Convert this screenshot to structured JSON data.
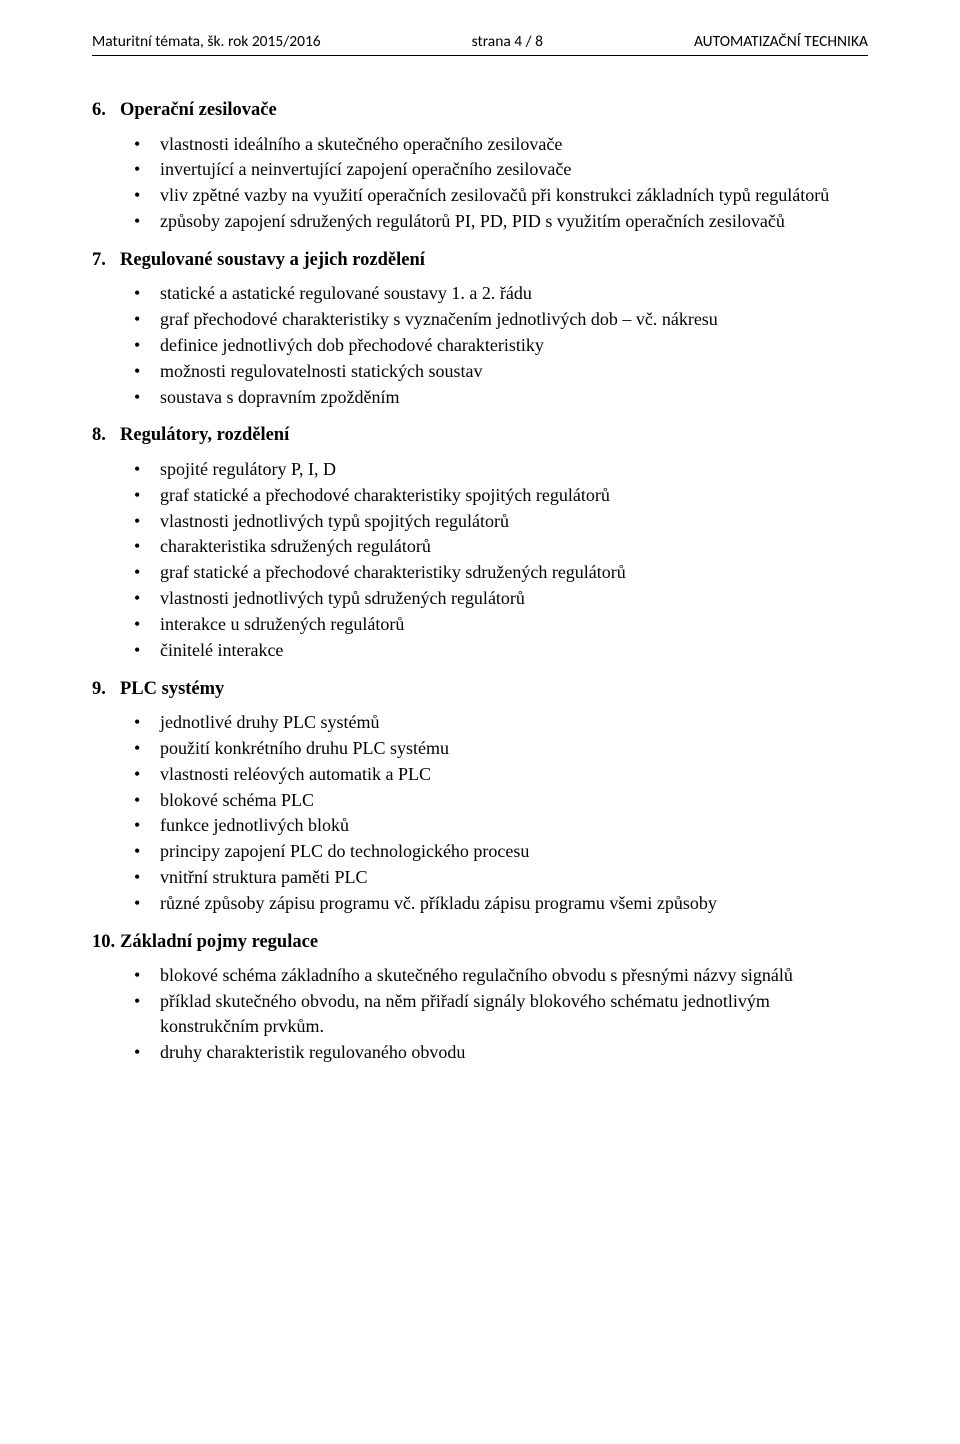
{
  "header": {
    "left": "Maturitní témata, šk. rok 2015/2016",
    "center": "strana 4 / 8",
    "right": "AUTOMATIZAČNÍ TECHNIKA"
  },
  "sections": [
    {
      "number": "6.",
      "title": "Operační zesilovače",
      "items": [
        "vlastnosti ideálního a skutečného operačního zesilovače",
        "invertující a neinvertující zapojení operačního zesilovače",
        "vliv zpětné vazby na využití operačních zesilovačů při konstrukci základních typů regulátorů",
        "způsoby zapojení sdružených regulátorů PI, PD, PID s využitím operačních zesilovačů"
      ]
    },
    {
      "number": "7.",
      "title": "Regulované soustavy a jejich rozdělení",
      "items": [
        "statické a astatické regulované soustavy 1. a 2. řádu",
        "graf přechodové charakteristiky s vyznačením jednotlivých dob – vč. nákresu",
        "definice jednotlivých dob přechodové charakteristiky",
        "možnosti regulovatelnosti statických soustav",
        "soustava s dopravním zpožděním"
      ]
    },
    {
      "number": "8.",
      "title": "Regulátory, rozdělení",
      "items": [
        "spojité regulátory P, I, D",
        "graf statické a přechodové charakteristiky spojitých regulátorů",
        "vlastnosti jednotlivých typů spojitých regulátorů",
        "charakteristika sdružených regulátorů",
        "graf statické a přechodové charakteristiky sdružených regulátorů",
        "vlastnosti jednotlivých typů sdružených regulátorů",
        "interakce u sdružených regulátorů",
        "činitelé interakce"
      ]
    },
    {
      "number": "9.",
      "title": "PLC systémy",
      "items": [
        "jednotlivé druhy PLC systémů",
        "použití konkrétního druhu PLC systému",
        "vlastnosti reléových automatik a PLC",
        "blokové schéma PLC",
        "funkce jednotlivých bloků",
        "principy zapojení PLC do technologického procesu",
        "vnitřní struktura paměti PLC",
        "různé způsoby zápisu programu vč. příkladu zápisu programu všemi způsoby"
      ]
    },
    {
      "number": "10.",
      "title": "Základní pojmy regulace",
      "items": [
        "blokové schéma základního a skutečného regulačního obvodu s přesnými názvy signálů",
        "příklad skutečného obvodu, na něm přiřadí signály blokového schématu jednotlivým konstrukčním prvkům.",
        "druhy charakteristik regulovaného obvodu"
      ]
    }
  ]
}
